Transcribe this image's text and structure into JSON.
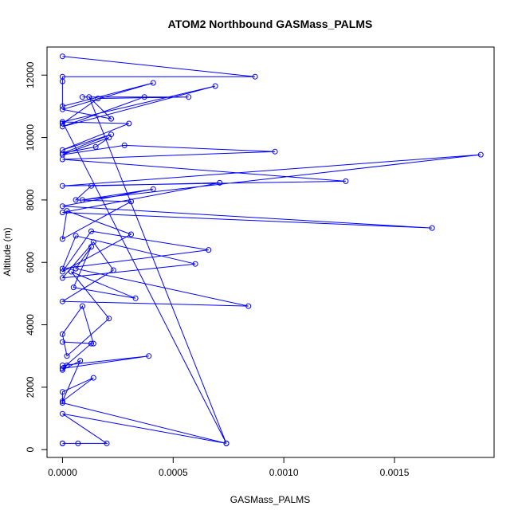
{
  "chart_data": {
    "type": "line",
    "title": "ATOM2 Northbound GASMass_PALMS",
    "xlabel": "GASMass_PALMS",
    "ylabel": "Altitude (m)",
    "xlim": [
      -7e-05,
      0.00195
    ],
    "ylim": [
      -250,
      12900
    ],
    "xticks": [
      0.0,
      0.0005,
      0.001,
      0.0015
    ],
    "xtick_labels": [
      "0.0000",
      "0.0005",
      "0.0010",
      "0.0015"
    ],
    "yticks": [
      0,
      2000,
      4000,
      6000,
      8000,
      10000,
      12000
    ],
    "ytick_labels": [
      "0",
      "2000",
      "4000",
      "6000",
      "8000",
      "10000",
      "12000"
    ],
    "grid": false,
    "series": [
      {
        "color": "#0000ff",
        "marker": "open-circle",
        "x": [
          0.0,
          0.00087,
          0.0,
          0.0,
          0.0,
          0.00041,
          0.0,
          0.00022,
          0.00012,
          0.00074,
          0.0,
          0.00069,
          0.0,
          0.00037,
          9e-05,
          0.00057,
          0.00016,
          0.0,
          0.0,
          0.0003,
          0.0,
          0.00022,
          0.0,
          0.00015,
          0.00021,
          0.0,
          0.00028,
          0.00096,
          0.0,
          0.00128,
          0.0,
          0.00189,
          9e-05,
          0.00041,
          0.0,
          0.00167,
          0.0,
          0.00071,
          0.00013,
          6e-05,
          0.00031,
          0.0,
          2e-05,
          0.00031,
          0.0,
          0.00013,
          0.00066,
          0.0,
          6e-05,
          0.0006,
          0.0,
          0.00014,
          0.00023,
          0.0,
          0.00084,
          6e-05,
          0.00013,
          5e-05,
          0.00033,
          4e-05,
          0.00021,
          2e-05,
          0.0,
          9e-05,
          0.00014,
          0.0,
          0.00013,
          0.0,
          0.00039,
          0.0,
          2e-05,
          0.0,
          8e-05,
          0.0,
          0.00014,
          0.0,
          0.0,
          0.00074,
          0.0,
          0.0002,
          0.0,
          7e-05,
          0.0
        ],
        "y": [
          12600,
          11950,
          11950,
          11800,
          11000,
          11750,
          10900,
          10600,
          11300,
          200,
          10500,
          11650,
          10350,
          11300,
          11300,
          11300,
          11250,
          10450,
          10500,
          10450,
          9600,
          10100,
          9500,
          9700,
          10000,
          9450,
          9750,
          9550,
          9300,
          8600,
          8450,
          9450,
          8000,
          8350,
          7800,
          7100,
          7600,
          8550,
          8450,
          8000,
          7950,
          6750,
          7650,
          6900,
          5700,
          7000,
          6400,
          5800,
          6850,
          5950,
          5500,
          6650,
          5750,
          4750,
          4600,
          5800,
          6500,
          5200,
          4850,
          5700,
          4200,
          3000,
          3700,
          4600,
          3400,
          3450,
          3400,
          2600,
          3000,
          2700,
          2700,
          2550,
          2850,
          1550,
          2300,
          1850,
          1500,
          200,
          1150,
          200,
          200,
          200,
          200
        ]
      }
    ]
  }
}
